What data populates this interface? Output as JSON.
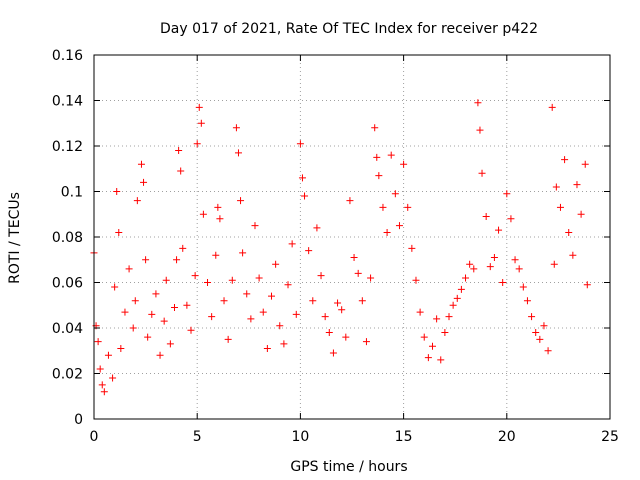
{
  "chart_data": {
    "type": "scatter",
    "title": "Day 017 of 2021, Rate Of TEC Index for receiver p422",
    "xlabel": "GPS time / hours",
    "ylabel": "ROTI / TECUs",
    "xlim": [
      0,
      25
    ],
    "ylim": [
      0,
      0.16
    ],
    "xticks": [
      0,
      5,
      10,
      15,
      20,
      25
    ],
    "yticks": [
      0,
      0.02,
      0.04,
      0.06,
      0.08,
      0.1,
      0.12,
      0.14,
      0.16
    ],
    "xtick_labels": [
      "0",
      "5",
      "10",
      "15",
      "20",
      "25"
    ],
    "ytick_labels": [
      "0",
      "0.02",
      "0.04",
      "0.06",
      "0.08",
      "0.1",
      "0.12",
      "0.14",
      "0.16"
    ],
    "grid": true,
    "marker": "plus",
    "color": "#ff0000",
    "series": [
      {
        "x": [
          0.0,
          0.1,
          0.2,
          0.3,
          0.4,
          0.5,
          0.7,
          0.9,
          1.0,
          1.1,
          1.2,
          1.3,
          1.5,
          1.7,
          1.9,
          2.0,
          2.1,
          2.3,
          2.4,
          2.5,
          2.6,
          2.8,
          3.0,
          3.2,
          3.4,
          3.5,
          3.7,
          3.9,
          4.0,
          4.1,
          4.2,
          4.3,
          4.5,
          4.7,
          4.9,
          5.0,
          5.1,
          5.2,
          5.3,
          5.5,
          5.7,
          5.9,
          6.0,
          6.1,
          6.3,
          6.5,
          6.7,
          6.9,
          7.0,
          7.1,
          7.2,
          7.4,
          7.6,
          7.8,
          8.0,
          8.2,
          8.4,
          8.6,
          8.8,
          9.0,
          9.2,
          9.4,
          9.6,
          9.8,
          10.0,
          10.1,
          10.2,
          10.4,
          10.6,
          10.8,
          11.0,
          11.2,
          11.4,
          11.6,
          11.8,
          12.0,
          12.2,
          12.4,
          12.6,
          12.8,
          13.0,
          13.2,
          13.4,
          13.6,
          13.7,
          13.8,
          14.0,
          14.2,
          14.4,
          14.6,
          14.8,
          15.0,
          15.2,
          15.4,
          15.6,
          15.8,
          16.0,
          16.2,
          16.4,
          16.6,
          16.8,
          17.0,
          17.2,
          17.4,
          17.6,
          17.8,
          18.0,
          18.2,
          18.4,
          18.6,
          18.7,
          18.8,
          19.0,
          19.2,
          19.4,
          19.6,
          19.8,
          20.0,
          20.2,
          20.4,
          20.6,
          20.8,
          21.0,
          21.2,
          21.4,
          21.6,
          21.8,
          22.0,
          22.2,
          22.3,
          22.4,
          22.6,
          22.8,
          23.0,
          23.2,
          23.4,
          23.6,
          23.8,
          23.9
        ],
        "y": [
          0.073,
          0.041,
          0.034,
          0.022,
          0.015,
          0.012,
          0.028,
          0.018,
          0.058,
          0.1,
          0.082,
          0.031,
          0.047,
          0.066,
          0.04,
          0.052,
          0.096,
          0.112,
          0.104,
          0.07,
          0.036,
          0.046,
          0.055,
          0.028,
          0.043,
          0.061,
          0.033,
          0.049,
          0.07,
          0.118,
          0.109,
          0.075,
          0.05,
          0.039,
          0.063,
          0.121,
          0.137,
          0.13,
          0.09,
          0.06,
          0.045,
          0.072,
          0.093,
          0.088,
          0.052,
          0.035,
          0.061,
          0.128,
          0.117,
          0.096,
          0.073,
          0.055,
          0.044,
          0.085,
          0.062,
          0.047,
          0.031,
          0.054,
          0.068,
          0.041,
          0.033,
          0.059,
          0.077,
          0.046,
          0.121,
          0.106,
          0.098,
          0.074,
          0.052,
          0.084,
          0.063,
          0.045,
          0.038,
          0.029,
          0.051,
          0.048,
          0.036,
          0.096,
          0.071,
          0.064,
          0.052,
          0.034,
          0.062,
          0.128,
          0.115,
          0.107,
          0.093,
          0.082,
          0.116,
          0.099,
          0.085,
          0.112,
          0.093,
          0.075,
          0.061,
          0.047,
          0.036,
          0.027,
          0.032,
          0.044,
          0.026,
          0.038,
          0.045,
          0.05,
          0.053,
          0.057,
          0.062,
          0.068,
          0.066,
          0.139,
          0.127,
          0.108,
          0.089,
          0.067,
          0.071,
          0.083,
          0.06,
          0.099,
          0.088,
          0.07,
          0.066,
          0.058,
          0.052,
          0.045,
          0.038,
          0.035,
          0.041,
          0.03,
          0.137,
          0.068,
          0.102,
          0.093,
          0.114,
          0.082,
          0.072,
          0.103,
          0.09,
          0.112,
          0.059
        ]
      }
    ]
  }
}
